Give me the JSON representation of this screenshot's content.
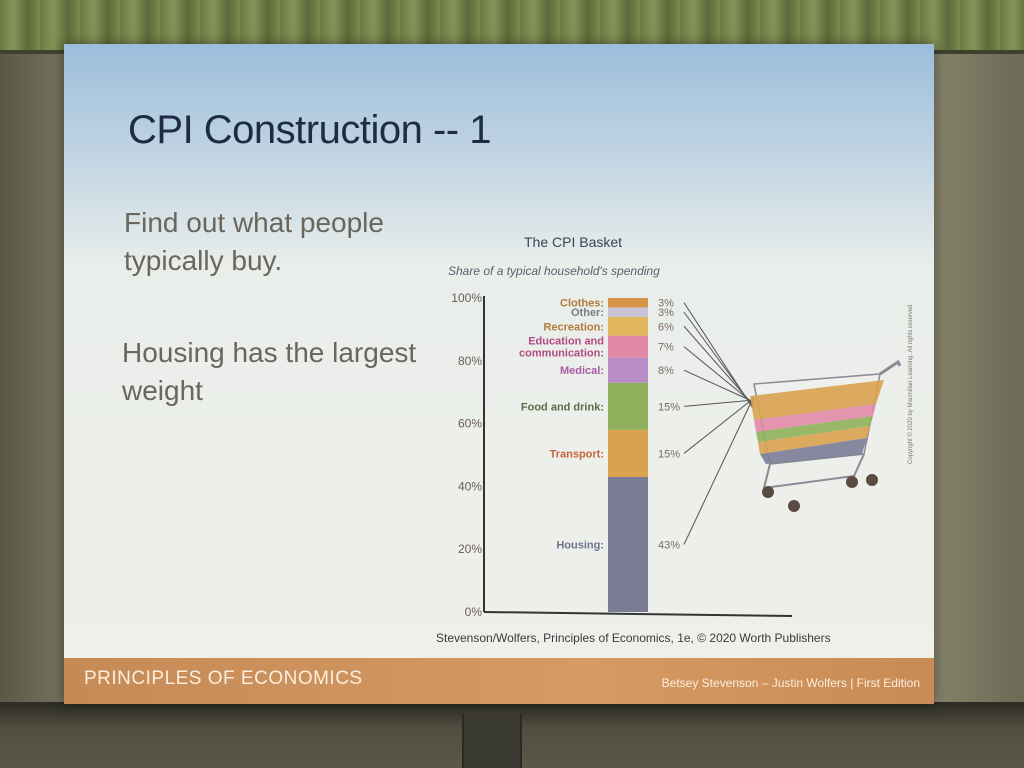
{
  "slide": {
    "title": "CPI Construction -- 1",
    "bullets": [
      "Find out what people typically buy.",
      "Housing has the largest weight"
    ],
    "footer_left": "PRINCIPLES OF ECONOMICS",
    "footer_right": "Betsey Stevenson – Justin Wolfers | First Edition",
    "side_copyright": "Copyright © 2020 by Macmillan Learning. All rights reserved"
  },
  "chart_data": {
    "type": "bar",
    "stacked": true,
    "title": "The CPI Basket",
    "subtitle": "Share of a typical household's spending",
    "y_ticks": [
      "0%",
      "20%",
      "40%",
      "60%",
      "80%",
      "100%"
    ],
    "ylim": [
      0,
      100
    ],
    "segments": [
      {
        "label": "Housing:",
        "value": 43,
        "value_label": "43%",
        "color": "#7a7c96",
        "label_color": "#6f7290"
      },
      {
        "label": "Transport:",
        "value": 15,
        "value_label": "15%",
        "color": "#d9a24f",
        "label_color": "#c7633b"
      },
      {
        "label": "Food and drink:",
        "value": 15,
        "value_label": "15%",
        "color": "#8fb05a",
        "label_color": "#5e6a45"
      },
      {
        "label": "Medical:",
        "value": 8,
        "value_label": "8%",
        "color": "#b98cc7",
        "label_color": "#a85aa6"
      },
      {
        "label": "Education and communication:",
        "value": 7,
        "value_label": "7%",
        "color": "#e18aa6",
        "label_color": "#b04b84"
      },
      {
        "label": "Recreation:",
        "value": 6,
        "value_label": "6%",
        "color": "#e2b65c",
        "label_color": "#b07a3a"
      },
      {
        "label": "Other:",
        "value": 3,
        "value_label": "3%",
        "color": "#c9c5d6",
        "label_color": "#7a7a82"
      },
      {
        "label": "Clothes:",
        "value": 3,
        "value_label": "3%",
        "color": "#d89446",
        "label_color": "#b47a3a"
      }
    ],
    "credit": "Stevenson/Wolfers, Principles of Economics, 1e, © 2020 Worth Publishers",
    "grid": false
  }
}
